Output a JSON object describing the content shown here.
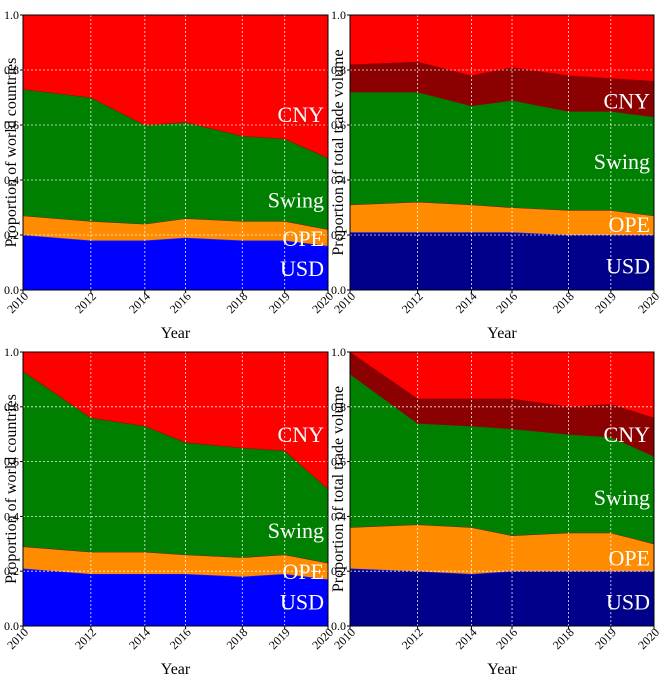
{
  "colors": {
    "USD": "#0000ff",
    "USD_dark": "#00008b",
    "OPE": "#ff8c00",
    "Swing": "#008000",
    "CNY": "#ff0000",
    "CNY_dark": "#8b0000",
    "edge": "#8b0000"
  },
  "chart_data": [
    {
      "type": "area",
      "x": [
        "2010",
        "2012",
        "2014",
        "2016",
        "2018",
        "2019",
        "2020"
      ],
      "xlabel": "Year",
      "ylabel": "Proportion of world countries",
      "ylim": [
        0,
        1
      ],
      "yticks": [
        "0.0",
        "0.2",
        "0.4",
        "0.6",
        "0.8",
        "1.0"
      ],
      "grid": true,
      "stack": [
        {
          "name": "USD",
          "color_key": "USD",
          "values": [
            0.2,
            0.18,
            0.18,
            0.19,
            0.18,
            0.18,
            0.16
          ]
        },
        {
          "name": "OPE",
          "color_key": "OPE",
          "values": [
            0.07,
            0.07,
            0.06,
            0.07,
            0.07,
            0.07,
            0.06
          ]
        },
        {
          "name": "Swing",
          "color_key": "Swing",
          "values": [
            0.46,
            0.45,
            0.36,
            0.35,
            0.31,
            0.3,
            0.26
          ]
        },
        {
          "name": "CNY",
          "color_key": "CNY",
          "values": [
            0.27,
            0.3,
            0.4,
            0.39,
            0.44,
            0.45,
            0.52
          ]
        }
      ],
      "labels": [
        {
          "text": "CNY",
          "y": 0.64
        },
        {
          "text": "Swing",
          "y": 0.33
        },
        {
          "text": "OPE",
          "y": 0.19
        },
        {
          "text": "USD",
          "y": 0.08
        }
      ]
    },
    {
      "type": "area",
      "x": [
        "2010",
        "2012",
        "2014",
        "2016",
        "2018",
        "2019",
        "2020"
      ],
      "xlabel": "Year",
      "ylabel": "Proportion of total trade volume",
      "ylim": [
        0,
        1
      ],
      "yticks": [
        "0.0",
        "0.2",
        "0.4",
        "0.6",
        "0.8",
        "1.0"
      ],
      "grid": true,
      "stack": [
        {
          "name": "USD",
          "color_key": "USD_dark",
          "values": [
            0.21,
            0.21,
            0.21,
            0.21,
            0.2,
            0.2,
            0.2
          ]
        },
        {
          "name": "OPE",
          "color_key": "OPE",
          "values": [
            0.1,
            0.11,
            0.1,
            0.09,
            0.09,
            0.09,
            0.07
          ]
        },
        {
          "name": "Swing",
          "color_key": "Swing",
          "values": [
            0.41,
            0.4,
            0.36,
            0.39,
            0.36,
            0.36,
            0.36
          ]
        },
        {
          "name": "CNY",
          "color_key": "CNY_dark",
          "values": [
            0.1,
            0.11,
            0.11,
            0.12,
            0.13,
            0.12,
            0.13
          ]
        },
        {
          "name": "CNY",
          "color_key": "CNY",
          "values": [
            0.18,
            0.17,
            0.22,
            0.19,
            0.22,
            0.23,
            0.24
          ]
        }
      ],
      "labels": [
        {
          "text": "CNY",
          "y": 0.69
        },
        {
          "text": "Swing",
          "y": 0.47
        },
        {
          "text": "OPE",
          "y": 0.24
        },
        {
          "text": "USD",
          "y": 0.09
        }
      ]
    },
    {
      "type": "area",
      "x": [
        "2010",
        "2012",
        "2014",
        "2016",
        "2018",
        "2019",
        "2020"
      ],
      "xlabel": "Year",
      "ylabel": "Proportion of world countries",
      "ylim": [
        0,
        1
      ],
      "yticks": [
        "0.0",
        "0.2",
        "0.4",
        "0.6",
        "0.8",
        "1.0"
      ],
      "grid": true,
      "stack": [
        {
          "name": "USD",
          "color_key": "USD",
          "values": [
            0.21,
            0.19,
            0.19,
            0.19,
            0.18,
            0.19,
            0.17
          ]
        },
        {
          "name": "OPE",
          "color_key": "OPE",
          "values": [
            0.08,
            0.08,
            0.08,
            0.07,
            0.07,
            0.07,
            0.06
          ]
        },
        {
          "name": "Swing",
          "color_key": "Swing",
          "values": [
            0.64,
            0.49,
            0.46,
            0.41,
            0.4,
            0.38,
            0.27
          ]
        },
        {
          "name": "CNY",
          "color_key": "CNY",
          "values": [
            0.07,
            0.24,
            0.27,
            0.33,
            0.35,
            0.36,
            0.5
          ]
        }
      ],
      "labels": [
        {
          "text": "CNY",
          "y": 0.7
        },
        {
          "text": "Swing",
          "y": 0.35
        },
        {
          "text": "OPE",
          "y": 0.2
        },
        {
          "text": "USD",
          "y": 0.09
        }
      ]
    },
    {
      "type": "area",
      "x": [
        "2010",
        "2012",
        "2014",
        "2016",
        "2018",
        "2019",
        "2020"
      ],
      "xlabel": "Year",
      "ylabel": "Proportion of total trade volume",
      "ylim": [
        0,
        1
      ],
      "yticks": [
        "0.0",
        "0.2",
        "0.4",
        "0.6",
        "0.8",
        "1.0"
      ],
      "grid": true,
      "stack": [
        {
          "name": "USD",
          "color_key": "USD_dark",
          "values": [
            0.21,
            0.2,
            0.19,
            0.2,
            0.2,
            0.2,
            0.2
          ]
        },
        {
          "name": "OPE",
          "color_key": "OPE",
          "values": [
            0.15,
            0.17,
            0.17,
            0.13,
            0.14,
            0.14,
            0.1
          ]
        },
        {
          "name": "Swing",
          "color_key": "Swing",
          "values": [
            0.56,
            0.37,
            0.37,
            0.39,
            0.36,
            0.35,
            0.32
          ]
        },
        {
          "name": "CNY",
          "color_key": "CNY_dark",
          "values": [
            0.08,
            0.09,
            0.1,
            0.11,
            0.1,
            0.12,
            0.14
          ]
        },
        {
          "name": "CNY",
          "color_key": "CNY",
          "values": [
            0.0,
            0.17,
            0.17,
            0.17,
            0.2,
            0.19,
            0.24
          ]
        }
      ],
      "labels": [
        {
          "text": "CNY",
          "y": 0.7
        },
        {
          "text": "Swing",
          "y": 0.47
        },
        {
          "text": "OPE",
          "y": 0.25
        },
        {
          "text": "USD",
          "y": 0.09
        }
      ]
    }
  ]
}
